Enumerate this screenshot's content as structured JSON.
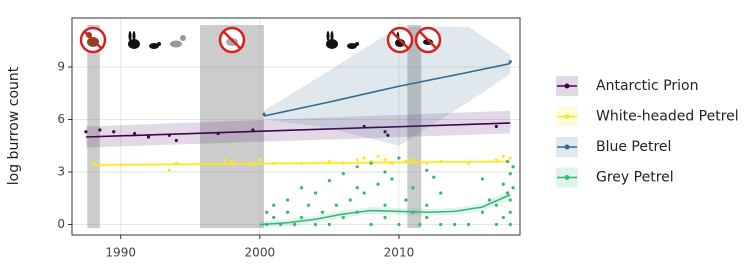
{
  "chart_data": {
    "type": "scatter",
    "y_label": "log burrow count",
    "xlim": [
      1986.5,
      2018.7
    ],
    "ylim": [
      -0.6,
      11.8
    ],
    "xticks": [
      1990,
      2000,
      2010
    ],
    "yticks": [
      0,
      3,
      6,
      9
    ],
    "grid": true,
    "legend_position": "right",
    "shaded_periods": [
      [
        1987.6,
        1988.5
      ],
      [
        1995.7,
        2000.3
      ],
      [
        2010.6,
        2011.6
      ]
    ],
    "series": [
      {
        "name": "Antarctic Prion",
        "color": "#440154",
        "x": [
          1987.5,
          1988.5,
          1989.5,
          1991,
          1992,
          1993.5,
          1994,
          1997,
          1999.5,
          2007.5,
          2009,
          2009.2,
          2017
        ],
        "values": [
          5.3,
          5.4,
          5.3,
          5.2,
          5.0,
          5.1,
          4.8,
          5.2,
          5.4,
          5.6,
          5.3,
          5.1,
          5.6
        ],
        "trend": {
          "x": [
            1987.5,
            2018
          ],
          "values": [
            5.0,
            5.8
          ],
          "lower": [
            4.4,
            5.2
          ],
          "upper": [
            5.6,
            6.5
          ]
        }
      },
      {
        "name": "White-headed Petrel",
        "color": "#fde725",
        "x": [
          1988,
          1988.5,
          1990,
          1993.5,
          1994,
          1997.5,
          1998,
          1999.5,
          2000,
          2001,
          2003,
          2005,
          2006,
          2007,
          2007.5,
          2008,
          2008.5,
          2009,
          2009.5,
          2010,
          2010.5,
          2011,
          2012,
          2013,
          2015,
          2017,
          2017.5,
          2018
        ],
        "values": [
          3.5,
          3.4,
          3.4,
          3.1,
          3.5,
          3.7,
          3.6,
          3.4,
          3.7,
          3.5,
          3.5,
          3.6,
          3.5,
          3.7,
          3.8,
          3.6,
          3.9,
          3.7,
          3.5,
          3.8,
          3.6,
          3.7,
          3.5,
          3.6,
          3.5,
          3.7,
          3.9,
          3.8
        ],
        "trend": {
          "x": [
            1988,
            2018
          ],
          "values": [
            3.4,
            3.6
          ],
          "lower": [
            3.3,
            3.5
          ],
          "upper": [
            3.5,
            3.75
          ]
        }
      },
      {
        "name": "Blue Petrel",
        "color": "#31688e",
        "x": [
          2000.3,
          2018
        ],
        "values": [
          6.3,
          9.3
        ],
        "trend": {
          "x": [
            2000.3,
            2005,
            2010,
            2015,
            2018
          ],
          "values": [
            6.2,
            7.0,
            7.9,
            8.7,
            9.2
          ],
          "lower": [
            6.0,
            5.5,
            4.5,
            7.0,
            8.6
          ],
          "upper": [
            6.5,
            8.8,
            11.3,
            11.3,
            9.7
          ]
        }
      },
      {
        "name": "Grey Petrel",
        "color": "#35b779",
        "x": [
          2000.5,
          2000.5,
          2001,
          2001,
          2001.5,
          2002,
          2002,
          2002.5,
          2003,
          2003,
          2003.5,
          2004,
          2004,
          2004.5,
          2005,
          2005,
          2005.5,
          2006,
          2006,
          2006.5,
          2007,
          2007,
          2007,
          2007.5,
          2008,
          2008,
          2008.5,
          2009,
          2009,
          2009,
          2009.5,
          2010,
          2010,
          2010.5,
          2011,
          2011,
          2011.5,
          2012,
          2012,
          2012,
          2012.5,
          2013,
          2013,
          2014,
          2015,
          2016,
          2016,
          2016.5,
          2017,
          2017,
          2017.5,
          2017.5,
          2017.8,
          2017.8,
          2018,
          2018,
          2018,
          2018,
          2018.2,
          2018.2
        ],
        "values": [
          0.7,
          0,
          1.1,
          0.4,
          0,
          1.4,
          0.7,
          0,
          2.1,
          0.4,
          1.1,
          0,
          1.8,
          0.7,
          2.5,
          0,
          1.1,
          2.9,
          0.4,
          1.4,
          3.3,
          2.1,
          0.7,
          1.8,
          3.5,
          0,
          2.3,
          3.0,
          1.1,
          0.4,
          2.6,
          3.8,
          0,
          1.4,
          2.1,
          0.7,
          0,
          3.1,
          1.1,
          0.4,
          2.7,
          0,
          1.8,
          0,
          0,
          2.6,
          0.7,
          1.4,
          0,
          1.1,
          2.3,
          0.4,
          3.6,
          1.8,
          0.7,
          2.9,
          0,
          1.4,
          2.1,
          3.3
        ],
        "trend": {
          "x": [
            2000,
            2002,
            2004,
            2006,
            2008,
            2010,
            2012,
            2014,
            2016,
            2018
          ],
          "values": [
            0,
            0.1,
            0.3,
            0.6,
            0.8,
            0.75,
            0.7,
            0.75,
            1.0,
            1.7
          ],
          "lower": [
            -0.2,
            -0.1,
            0.1,
            0.4,
            0.6,
            0.55,
            0.5,
            0.55,
            0.8,
            1.4
          ],
          "upper": [
            0.2,
            0.3,
            0.5,
            0.8,
            1.0,
            0.95,
            0.9,
            0.95,
            1.2,
            2.0
          ]
        }
      }
    ]
  }
}
